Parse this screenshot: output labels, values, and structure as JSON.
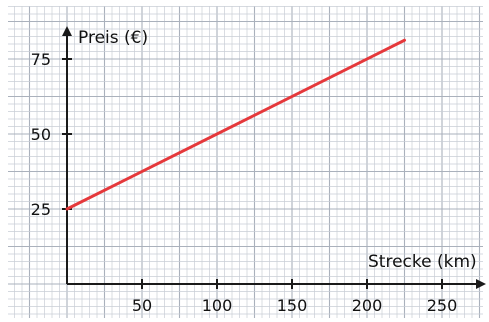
{
  "chart_data": {
    "type": "line",
    "xlabel": "Strecke (km)",
    "ylabel": "Preis (€)",
    "x_ticks": [
      50,
      100,
      150,
      200,
      250
    ],
    "y_ticks": [
      25,
      50,
      75
    ],
    "xlim": [
      0,
      275
    ],
    "ylim": [
      0,
      90
    ],
    "grid": true,
    "series": [
      {
        "x": [
          0,
          225
        ],
        "y": [
          25,
          81.25
        ]
      }
    ],
    "colors": {
      "line": "#e5383b",
      "axis": "#1a1a1a",
      "grid_minor": "#c9ced6",
      "grid_major": "#aab1bc",
      "background": "#ffffff"
    }
  }
}
